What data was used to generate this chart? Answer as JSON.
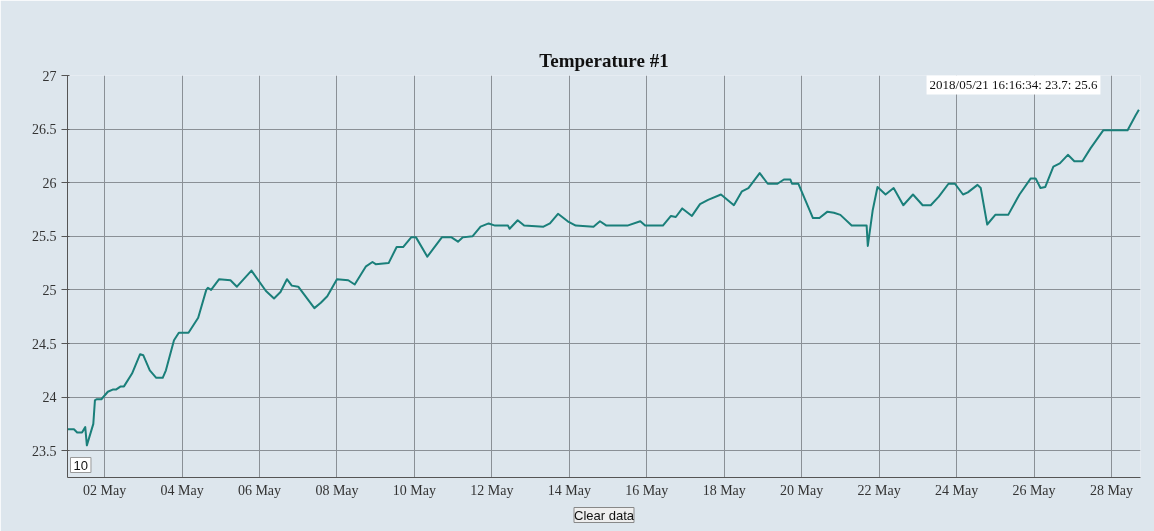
{
  "chart_data": {
    "type": "line",
    "title": "Temperature #1",
    "x": [
      "2018-05-01T01:00",
      "2018-05-01T05:00",
      "2018-05-01T07:00",
      "2018-05-01T10:00",
      "2018-05-01T12:00",
      "2018-05-01T13:00",
      "2018-05-01T17:00",
      "2018-05-01T18:00",
      "2018-05-01T19:00",
      "2018-05-01T22:00",
      "2018-05-02T02:00",
      "2018-05-02T05:00",
      "2018-05-02T07:00",
      "2018-05-02T10:00",
      "2018-05-02T12:00",
      "2018-05-02T17:00",
      "2018-05-02T22:00",
      "2018-05-03T00:00",
      "2018-05-03T04:00",
      "2018-05-03T08:00",
      "2018-05-03T12:00",
      "2018-05-03T14:00",
      "2018-05-03T19:00",
      "2018-05-03T22:00",
      "2018-05-04T04:00",
      "2018-05-04T10:00",
      "2018-05-04T15:00",
      "2018-05-04T16:00",
      "2018-05-04T18:00",
      "2018-05-04T23:00",
      "2018-05-05T06:00",
      "2018-05-05T10:00",
      "2018-05-05T19:00",
      "2018-05-06T04:00",
      "2018-05-06T09:00",
      "2018-05-06T13:00",
      "2018-05-06T17:00",
      "2018-05-06T20:00",
      "2018-05-07T00:00",
      "2018-05-07T10:00",
      "2018-05-07T14:00",
      "2018-05-07T18:00",
      "2018-05-08T00:00",
      "2018-05-08T07:00",
      "2018-05-08T11:00",
      "2018-05-08T18:00",
      "2018-05-08T22:00",
      "2018-05-09T00:00",
      "2018-05-09T08:00",
      "2018-05-09T13:00",
      "2018-05-09T17:00",
      "2018-05-09T22:00",
      "2018-05-10T01:00",
      "2018-05-10T08:00",
      "2018-05-10T17:00",
      "2018-05-10T23:00",
      "2018-05-11T03:00",
      "2018-05-11T06:00",
      "2018-05-11T12:00",
      "2018-05-11T17:00",
      "2018-05-11T22:00",
      "2018-05-12T02:00",
      "2018-05-12T10:00",
      "2018-05-12T11:00",
      "2018-05-12T16:00",
      "2018-05-12T20:00",
      "2018-05-13T08:00",
      "2018-05-13T12:00",
      "2018-05-13T17:00",
      "2018-05-13T23:00",
      "2018-05-14T04:00",
      "2018-05-14T15:00",
      "2018-05-14T19:00",
      "2018-05-14T23:00",
      "2018-05-15T12:00",
      "2018-05-15T20:00",
      "2018-05-15T23:00",
      "2018-05-16T10:00",
      "2018-05-16T15:00",
      "2018-05-16T18:00",
      "2018-05-16T22:00",
      "2018-05-17T04:00",
      "2018-05-17T09:00",
      "2018-05-17T14:00",
      "2018-05-17T22:00",
      "2018-05-18T06:00",
      "2018-05-18T11:00",
      "2018-05-18T15:00",
      "2018-05-18T22:00",
      "2018-05-19T03:00",
      "2018-05-19T09:00",
      "2018-05-19T13:00",
      "2018-05-19T17:00",
      "2018-05-19T18:00",
      "2018-05-19T22:00",
      "2018-05-20T07:00",
      "2018-05-20T11:00",
      "2018-05-20T16:00",
      "2018-05-20T20:00",
      "2018-05-21T00:00",
      "2018-05-21T07:00",
      "2018-05-21T16:16",
      "2018-05-21T17:00",
      "2018-05-21T18:00",
      "2018-05-21T20:00",
      "2018-05-21T23:00",
      "2018-05-22T04:00",
      "2018-05-22T09:00",
      "2018-05-22T15:00",
      "2018-05-22T21:00",
      "2018-05-23T03:00",
      "2018-05-23T08:00",
      "2018-05-23T13:00",
      "2018-05-23T19:00",
      "2018-05-23T23:00",
      "2018-05-24T04:00",
      "2018-05-24T07:00",
      "2018-05-24T13:00",
      "2018-05-24T15:00",
      "2018-05-24T19:00",
      "2018-05-25T00:00",
      "2018-05-25T08:00",
      "2018-05-25T15:00",
      "2018-05-25T22:00",
      "2018-05-26T01:00",
      "2018-05-26T04:00",
      "2018-05-26T07:00",
      "2018-05-26T12:00",
      "2018-05-26T16:00",
      "2018-05-26T21:00",
      "2018-05-27T01:00",
      "2018-05-27T06:00",
      "2018-05-27T11:00",
      "2018-05-27T19:00",
      "2018-05-28T04:00",
      "2018-05-28T10:00",
      "2018-05-28T15:00",
      "2018-05-28T17:00"
    ],
    "series": [
      {
        "color": "#1a7f7a",
        "values": [
          23.7,
          23.7,
          23.67,
          23.67,
          23.72,
          23.55,
          23.75,
          23.97,
          23.98,
          23.98,
          24.05,
          24.07,
          24.07,
          24.1,
          24.1,
          24.22,
          24.4,
          24.39,
          24.25,
          24.18,
          24.18,
          24.25,
          24.53,
          24.6,
          24.6,
          24.74,
          25.0,
          25.02,
          25.0,
          25.1,
          25.09,
          25.03,
          25.18,
          24.99,
          24.92,
          24.98,
          25.1,
          25.04,
          25.03,
          24.83,
          24.88,
          24.94,
          25.1,
          25.09,
          25.05,
          25.22,
          25.26,
          25.24,
          25.25,
          25.4,
          25.4,
          25.49,
          25.49,
          25.31,
          25.49,
          25.49,
          25.45,
          25.49,
          25.5,
          25.59,
          25.62,
          25.6,
          25.6,
          25.57,
          25.65,
          25.6,
          25.59,
          25.62,
          25.71,
          25.64,
          25.6,
          25.59,
          25.64,
          25.6,
          25.6,
          25.64,
          25.6,
          25.6,
          25.69,
          25.68,
          25.76,
          25.69,
          25.8,
          25.84,
          25.89,
          25.79,
          25.92,
          25.95,
          26.09,
          25.99,
          25.99,
          26.03,
          26.03,
          25.99,
          25.99,
          25.67,
          25.67,
          25.73,
          25.72,
          25.7,
          25.6,
          25.6,
          25.41,
          25.52,
          25.74,
          25.96,
          25.89,
          25.95,
          25.79,
          25.89,
          25.79,
          25.79,
          25.87,
          25.99,
          25.99,
          25.89,
          25.91,
          25.98,
          25.95,
          25.61,
          25.7,
          25.7,
          25.89,
          26.04,
          26.04,
          25.95,
          25.96,
          26.15,
          26.18,
          26.26,
          26.2,
          26.2,
          26.32,
          26.49,
          26.49,
          26.49,
          26.63,
          26.68
        ]
      }
    ],
    "xlim": [
      "2018-05-01T01:00",
      "2018-05-28T18:00"
    ],
    "xticks": [
      {
        "value": "2018-05-02",
        "label": "02 May"
      },
      {
        "value": "2018-05-04",
        "label": "04 May"
      },
      {
        "value": "2018-05-06",
        "label": "06 May"
      },
      {
        "value": "2018-05-08",
        "label": "08 May"
      },
      {
        "value": "2018-05-10",
        "label": "10 May"
      },
      {
        "value": "2018-05-12",
        "label": "12 May"
      },
      {
        "value": "2018-05-14",
        "label": "14 May"
      },
      {
        "value": "2018-05-16",
        "label": "16 May"
      },
      {
        "value": "2018-05-18",
        "label": "18 May"
      },
      {
        "value": "2018-05-20",
        "label": "20 May"
      },
      {
        "value": "2018-05-22",
        "label": "22 May"
      },
      {
        "value": "2018-05-24",
        "label": "24 May"
      },
      {
        "value": "2018-05-26",
        "label": "26 May"
      },
      {
        "value": "2018-05-28",
        "label": "28 May"
      }
    ],
    "ylim": [
      23.25,
      27
    ],
    "yticks": [
      23.5,
      24,
      24.5,
      25,
      25.5,
      26,
      26.5,
      27
    ],
    "grid": true,
    "marker": "none",
    "line_style": "solid",
    "annotations": [
      "2018/05/21 16:16:34: 23.7: 25.6",
      "10",
      "Clear data"
    ]
  }
}
